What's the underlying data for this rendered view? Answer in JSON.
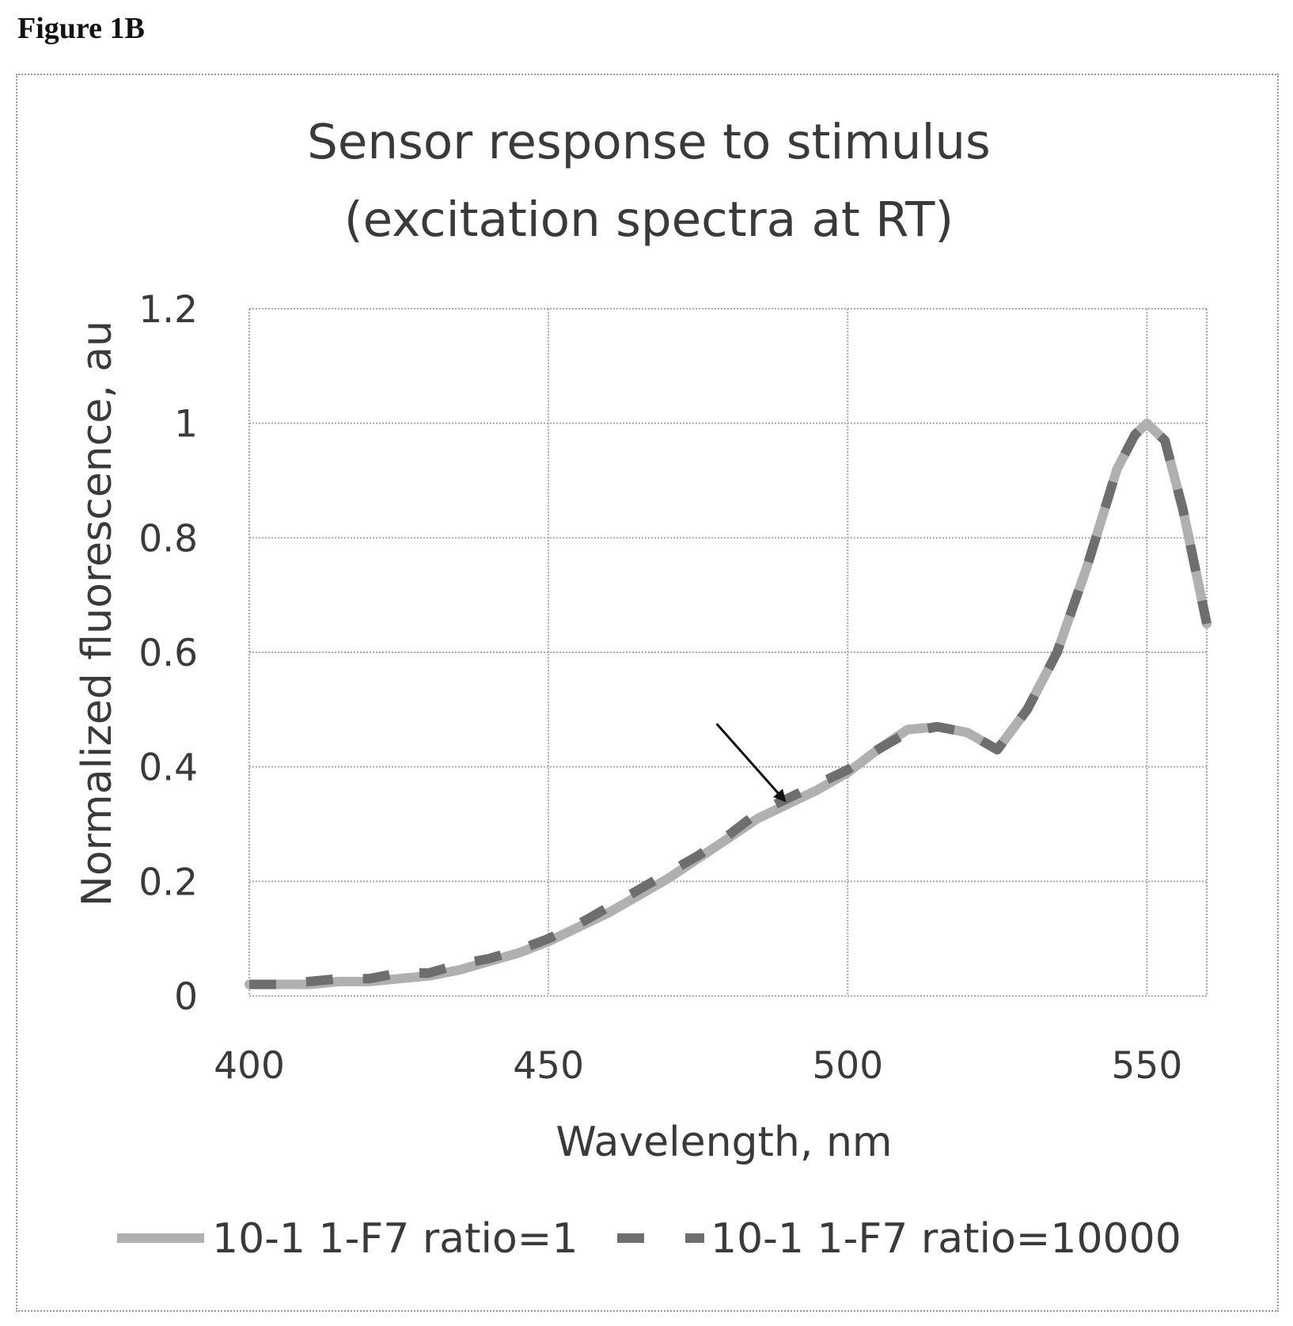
{
  "figure_label": "Figure 1B",
  "chart_data": {
    "type": "line",
    "title": "Sensor response to stimulus",
    "subtitle": "(excitation spectra at RT)",
    "xlabel": "Wavelength, nm",
    "ylabel": "Normalized fluorescence, au",
    "xlim": [
      400,
      560
    ],
    "ylim": [
      0,
      1.2
    ],
    "xticks": [
      400,
      450,
      500,
      550
    ],
    "xtick_labels": [
      "400",
      "450",
      "500",
      "550"
    ],
    "yticks": [
      0,
      0.2,
      0.4,
      0.6,
      0.8,
      1.0,
      1.2
    ],
    "ytick_labels": [
      "0",
      "0.2",
      "0.4",
      "0.6",
      "0.8",
      "1",
      "1.2"
    ],
    "grid": true,
    "legend_position": "bottom",
    "series": [
      {
        "name": "10-1 1-F7 ratio=1",
        "style": "solid",
        "color": "#b0b0b0",
        "x": [
          400,
          405,
          410,
          415,
          420,
          425,
          430,
          435,
          440,
          445,
          450,
          455,
          460,
          465,
          470,
          475,
          480,
          485,
          490,
          495,
          500,
          505,
          510,
          515,
          520,
          525,
          530,
          535,
          540,
          545,
          548,
          550,
          553,
          556,
          560
        ],
        "y": [
          0.02,
          0.02,
          0.02,
          0.025,
          0.025,
          0.03,
          0.035,
          0.045,
          0.06,
          0.075,
          0.095,
          0.12,
          0.145,
          0.175,
          0.205,
          0.24,
          0.275,
          0.31,
          0.335,
          0.36,
          0.39,
          0.43,
          0.465,
          0.47,
          0.46,
          0.43,
          0.5,
          0.6,
          0.75,
          0.92,
          0.98,
          1.0,
          0.97,
          0.85,
          0.65
        ]
      },
      {
        "name": "10-1 1-F7 ratio=10000",
        "style": "dashed",
        "color": "#6e6e6e",
        "x": [
          400,
          405,
          410,
          415,
          420,
          425,
          430,
          435,
          440,
          445,
          450,
          455,
          460,
          465,
          470,
          475,
          480,
          485,
          490,
          495,
          500,
          505,
          510,
          515,
          520,
          525,
          530,
          535,
          540,
          545,
          548,
          550,
          553,
          556,
          560
        ],
        "y": [
          0.02,
          0.02,
          0.025,
          0.03,
          0.03,
          0.04,
          0.04,
          0.055,
          0.065,
          0.08,
          0.1,
          0.125,
          0.155,
          0.185,
          0.215,
          0.245,
          0.28,
          0.32,
          0.345,
          0.37,
          0.395,
          0.43,
          0.46,
          0.47,
          0.46,
          0.43,
          0.5,
          0.6,
          0.75,
          0.92,
          0.98,
          1.0,
          0.97,
          0.85,
          0.65
        ]
      }
    ]
  },
  "annotations": [
    {
      "type": "arrow",
      "points_to": {
        "x": 490,
        "y": 0.33
      }
    }
  ]
}
